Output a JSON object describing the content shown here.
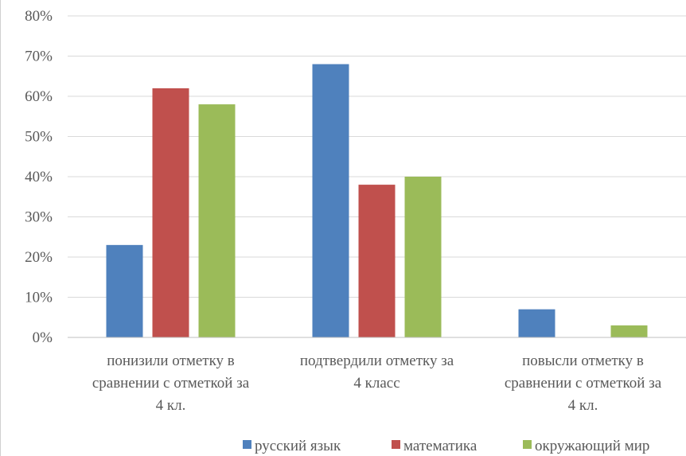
{
  "chart_data": {
    "type": "bar",
    "categories": [
      [
        "понизили отметку в",
        "сравнении с отметкой за",
        "4 кл."
      ],
      [
        "подтвердили отметку за",
        "4 класс"
      ],
      [
        "повысли отметку в",
        "сравнении с отметкой за",
        "4 кл."
      ]
    ],
    "series": [
      {
        "name": "русский язык",
        "color": "#4f81bd",
        "values": [
          23,
          68,
          7
        ]
      },
      {
        "name": "математика",
        "color": "#c0504d",
        "values": [
          62,
          38,
          0
        ]
      },
      {
        "name": "окружающий мир",
        "color": "#9bbb59",
        "values": [
          58,
          40,
          3
        ]
      }
    ],
    "y_ticks": [
      "0%",
      "10%",
      "20%",
      "30%",
      "40%",
      "50%",
      "60%",
      "70%",
      "80%"
    ],
    "ylim": [
      0,
      80
    ],
    "grid": true,
    "legend_position": "bottom-right",
    "title": "",
    "xlabel": "",
    "ylabel": ""
  }
}
